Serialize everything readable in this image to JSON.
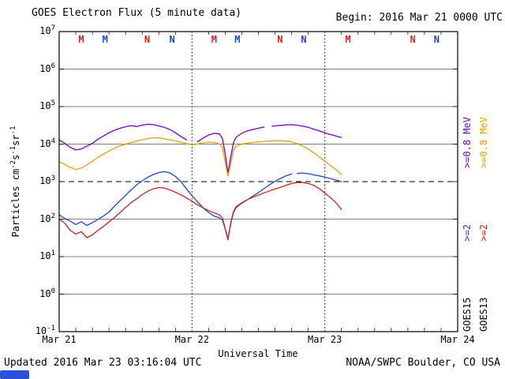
{
  "header": {
    "begin_label": "Begin: 2016 Mar 21 0000 UTC"
  },
  "footer": {
    "updated": "Updated 2016 Mar 23 03:16:04 UTC",
    "credit": "NOAA/SWPC Boulder, CO USA"
  },
  "axis": {
    "y_title_parts": {
      "p1": "Particles cm",
      "s1": "-2",
      "p2": "s",
      "s2": "-1",
      "p3": "sr",
      "s3": "-1"
    }
  },
  "legend": {
    "columns": [
      {
        "name": "GOES15",
        "segments": [
          {
            "text": "GOES15",
            "color": "#000000"
          },
          {
            "text": ">=2",
            "color": "#2244cc"
          },
          {
            "text": ">=0.8 MeV",
            "color": "#7a00c2"
          }
        ]
      },
      {
        "name": "GOES13",
        "segments": [
          {
            "text": "GOES13",
            "color": "#000000"
          },
          {
            "text": ">=2",
            "color": "#cc2222"
          },
          {
            "text": ">=0.8 MeV",
            "color": "#e0a010"
          }
        ]
      }
    ]
  },
  "colors": {
    "grid": "#000000",
    "artifact_blue": "#2d50d8"
  },
  "chart_data": {
    "type": "line",
    "title": "GOES Electron Flux (5 minute data)",
    "xlabel": "Universal Time",
    "ylabel": "Particles cm-2 s-1 sr-1",
    "x_start": "2016 Mar 21 0000 UTC",
    "xlim_hours": [
      0,
      72
    ],
    "ylog": true,
    "ylim": [
      0.1,
      10000000
    ],
    "threshold": 1000,
    "y_tick_exponents": [
      7,
      6,
      5,
      4,
      3,
      2,
      1,
      0,
      -1
    ],
    "x_ticks": [
      {
        "hour": 0,
        "label": "Mar 21"
      },
      {
        "hour": 24,
        "label": "Mar 22"
      },
      {
        "hour": 48,
        "label": "Mar 23"
      },
      {
        "hour": 72,
        "label": "Mar 24"
      }
    ],
    "event_markers": [
      {
        "hour": 4.0,
        "label": "M",
        "color": "#cc2222"
      },
      {
        "hour": 8.3,
        "label": "M",
        "color": "#2244cc"
      },
      {
        "hour": 15.9,
        "label": "N",
        "color": "#cc2222"
      },
      {
        "hour": 20.4,
        "label": "N",
        "color": "#2244cc"
      },
      {
        "hour": 28.0,
        "label": "M",
        "color": "#cc2222"
      },
      {
        "hour": 32.2,
        "label": "M",
        "color": "#2244cc"
      },
      {
        "hour": 39.9,
        "label": "N",
        "color": "#cc2222"
      },
      {
        "hour": 44.2,
        "label": "N",
        "color": "#2244cc"
      },
      {
        "hour": 52.2,
        "label": "M",
        "color": "#cc2222"
      },
      {
        "hour": 63.9,
        "label": "N",
        "color": "#cc2222"
      },
      {
        "hour": 68.2,
        "label": "N",
        "color": "#2244cc"
      }
    ],
    "series": [
      {
        "name": "GOES15 >=0.8 MeV",
        "satellite": "GOES15",
        "channel": ">=0.8 MeV",
        "color": "#7a00c2",
        "points": [
          [
            0,
            13000
          ],
          [
            1,
            10500
          ],
          [
            2,
            8200
          ],
          [
            3,
            7000
          ],
          [
            4,
            7400
          ],
          [
            5,
            8800
          ],
          [
            6,
            10500
          ],
          [
            7,
            13500
          ],
          [
            8,
            16500
          ],
          [
            9,
            20000
          ],
          [
            10,
            23500
          ],
          [
            11,
            26500
          ],
          [
            12,
            29000
          ],
          [
            13,
            31000
          ],
          [
            14,
            29500
          ],
          [
            15,
            32000
          ],
          [
            16,
            34000
          ],
          [
            17,
            33000
          ],
          [
            18,
            30500
          ],
          [
            19,
            28000
          ],
          [
            20,
            24500
          ],
          [
            21,
            20000
          ],
          [
            22,
            16000
          ],
          [
            23,
            13000
          ],
          [
            23.8,
            null
          ],
          [
            25,
            11500
          ],
          [
            26,
            14500
          ],
          [
            27,
            17500
          ],
          [
            28,
            19500
          ],
          [
            29,
            18500
          ],
          [
            29.5,
            14000
          ],
          [
            30,
            5500
          ],
          [
            30.5,
            1700
          ],
          [
            31,
            4500
          ],
          [
            31.5,
            11000
          ],
          [
            32,
            15500
          ],
          [
            33,
            19500
          ],
          [
            34,
            22500
          ],
          [
            35,
            24500
          ],
          [
            36,
            26500
          ],
          [
            37,
            28500
          ],
          [
            37.6,
            null
          ],
          [
            38.5,
            30000
          ],
          [
            39,
            30500
          ],
          [
            40,
            31500
          ],
          [
            41,
            32500
          ],
          [
            42,
            33000
          ],
          [
            43,
            32000
          ],
          [
            44,
            30000
          ],
          [
            45,
            28000
          ],
          [
            46,
            25000
          ],
          [
            47,
            22500
          ],
          [
            48,
            20000
          ],
          [
            49,
            18000
          ],
          [
            50,
            16500
          ],
          [
            51,
            15000
          ]
        ]
      },
      {
        "name": "GOES13 >=0.8 MeV",
        "satellite": "GOES13",
        "channel": ">=0.8 MeV",
        "color": "#e0a010",
        "points": [
          [
            0,
            3400
          ],
          [
            1,
            2900
          ],
          [
            2,
            2400
          ],
          [
            3,
            2100
          ],
          [
            4,
            2300
          ],
          [
            5,
            2800
          ],
          [
            6,
            3500
          ],
          [
            7,
            4400
          ],
          [
            8,
            5400
          ],
          [
            9,
            6600
          ],
          [
            10,
            7800
          ],
          [
            11,
            9000
          ],
          [
            12,
            10000
          ],
          [
            13,
            11000
          ],
          [
            14,
            12000
          ],
          [
            15,
            13000
          ],
          [
            16,
            14000
          ],
          [
            17,
            14800
          ],
          [
            18,
            14500
          ],
          [
            19,
            13800
          ],
          [
            20,
            13000
          ],
          [
            21,
            12200
          ],
          [
            22,
            11200
          ],
          [
            23,
            10300
          ],
          [
            24,
            9600
          ],
          [
            25,
            10000
          ],
          [
            26,
            10800
          ],
          [
            27,
            11300
          ],
          [
            28,
            11000
          ],
          [
            29,
            10000
          ],
          [
            29.5,
            8000
          ],
          [
            30,
            3200
          ],
          [
            30.5,
            1400
          ],
          [
            31,
            3000
          ],
          [
            31.5,
            6800
          ],
          [
            32,
            8800
          ],
          [
            33,
            10000
          ],
          [
            34,
            10600
          ],
          [
            35,
            11000
          ],
          [
            36,
            11500
          ],
          [
            37,
            11800
          ],
          [
            38,
            12000
          ],
          [
            39,
            12300
          ],
          [
            40,
            12400
          ],
          [
            41,
            12000
          ],
          [
            42,
            11400
          ],
          [
            43,
            10300
          ],
          [
            44,
            8900
          ],
          [
            45,
            7400
          ],
          [
            46,
            5900
          ],
          [
            47,
            4500
          ],
          [
            48,
            3500
          ],
          [
            49,
            2700
          ],
          [
            50,
            2100
          ],
          [
            51,
            1550
          ]
        ]
      },
      {
        "name": "GOES15 >=2 MeV",
        "satellite": "GOES15",
        "channel": ">=2 MeV",
        "color": "#2244cc",
        "points": [
          [
            0,
            130
          ],
          [
            1,
            105
          ],
          [
            2,
            88
          ],
          [
            3,
            72
          ],
          [
            4,
            85
          ],
          [
            5,
            68
          ],
          [
            6,
            80
          ],
          [
            7,
            98
          ],
          [
            8,
            120
          ],
          [
            9,
            155
          ],
          [
            10,
            220
          ],
          [
            11,
            310
          ],
          [
            12,
            430
          ],
          [
            13,
            600
          ],
          [
            14,
            820
          ],
          [
            15,
            1050
          ],
          [
            16,
            1300
          ],
          [
            17,
            1550
          ],
          [
            18,
            1750
          ],
          [
            19,
            1850
          ],
          [
            20,
            1700
          ],
          [
            21,
            1380
          ],
          [
            22,
            1000
          ],
          [
            23,
            640
          ],
          [
            24,
            420
          ],
          [
            25,
            290
          ],
          [
            26,
            200
          ],
          [
            27,
            150
          ],
          [
            28,
            120
          ],
          [
            29,
            108
          ],
          [
            29.5,
            95
          ],
          [
            30,
            55
          ],
          [
            30.5,
            30
          ],
          [
            31,
            75
          ],
          [
            31.5,
            150
          ],
          [
            32,
            205
          ],
          [
            33,
            265
          ],
          [
            34,
            330
          ],
          [
            35,
            410
          ],
          [
            36,
            510
          ],
          [
            37,
            650
          ],
          [
            38,
            820
          ],
          [
            39,
            1020
          ],
          [
            40,
            1220
          ],
          [
            41,
            1430
          ],
          [
            42,
            1600
          ],
          [
            42.4,
            null
          ],
          [
            43,
            1650
          ],
          [
            44,
            1700
          ],
          [
            45,
            1620
          ],
          [
            46,
            1520
          ],
          [
            47,
            1420
          ],
          [
            48,
            1320
          ],
          [
            49,
            1210
          ],
          [
            50,
            1100
          ],
          [
            51,
            1000
          ]
        ]
      },
      {
        "name": "GOES13 >=2 MeV",
        "satellite": "GOES13",
        "channel": ">=2 MeV",
        "color": "#cc2222",
        "points": [
          [
            0,
            100
          ],
          [
            1,
            78
          ],
          [
            2,
            50
          ],
          [
            3,
            40
          ],
          [
            4,
            46
          ],
          [
            5,
            32
          ],
          [
            6,
            38
          ],
          [
            7,
            50
          ],
          [
            8,
            64
          ],
          [
            9,
            84
          ],
          [
            10,
            110
          ],
          [
            11,
            150
          ],
          [
            12,
            205
          ],
          [
            13,
            275
          ],
          [
            14,
            350
          ],
          [
            15,
            450
          ],
          [
            16,
            550
          ],
          [
            17,
            640
          ],
          [
            18,
            700
          ],
          [
            19,
            675
          ],
          [
            20,
            600
          ],
          [
            21,
            520
          ],
          [
            22,
            445
          ],
          [
            23,
            370
          ],
          [
            24,
            300
          ],
          [
            25,
            240
          ],
          [
            26,
            200
          ],
          [
            27,
            168
          ],
          [
            28,
            148
          ],
          [
            29,
            128
          ],
          [
            29.5,
            108
          ],
          [
            30,
            55
          ],
          [
            30.5,
            28
          ],
          [
            31,
            80
          ],
          [
            31.5,
            160
          ],
          [
            32,
            215
          ],
          [
            33,
            275
          ],
          [
            34,
            330
          ],
          [
            35,
            385
          ],
          [
            36,
            435
          ],
          [
            37,
            500
          ],
          [
            38,
            565
          ],
          [
            39,
            635
          ],
          [
            40,
            705
          ],
          [
            41,
            800
          ],
          [
            42,
            890
          ],
          [
            43,
            945
          ],
          [
            44,
            945
          ],
          [
            45,
            895
          ],
          [
            46,
            795
          ],
          [
            47,
            645
          ],
          [
            48,
            495
          ],
          [
            49,
            375
          ],
          [
            50,
            275
          ],
          [
            51,
            180
          ]
        ]
      }
    ]
  }
}
